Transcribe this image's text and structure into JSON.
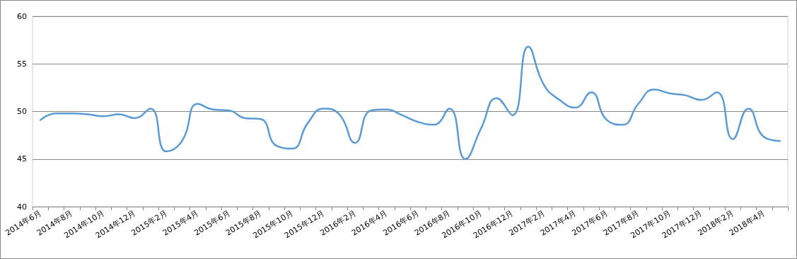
{
  "chart_data": {
    "type": "line",
    "categories": [
      "2014年6月",
      null,
      "2014年8月",
      null,
      "2014年10月",
      null,
      "2014年12月",
      null,
      "2015年2月",
      null,
      "2015年4月",
      null,
      "2015年6月",
      null,
      "2015年8月",
      null,
      "2015年10月",
      null,
      "2015年12月",
      null,
      "2016年2月",
      null,
      "2016年4月",
      null,
      "2016年6月",
      null,
      "2016年8月",
      null,
      "2016年10月",
      null,
      "2016年12月",
      null,
      "2017年2月",
      null,
      "2017年4月",
      null,
      "2017年6月",
      null,
      "2017年8月",
      null,
      "2017年10月",
      null,
      "2017年12月",
      null,
      "2018年2月",
      null,
      "2018年4月",
      null
    ],
    "series": [
      {
        "color": "#5b9bd5",
        "values": [
          49.1,
          49.8,
          49.8,
          49.7,
          49.5,
          49.7,
          49.3,
          50.3,
          45.8,
          46.9,
          50.8,
          50.2,
          50.1,
          49.3,
          49.2,
          46.4,
          46.1,
          48.8,
          50.3,
          49.7,
          46.7,
          50.1,
          50.2,
          49.6,
          48.9,
          48.6,
          50.3,
          45.0,
          48.2,
          51.4,
          49.6,
          56.8,
          52.8,
          51.2,
          50.4,
          52.0,
          49.1,
          48.6,
          50.8,
          52.3,
          51.9,
          51.7,
          51.2,
          52.0,
          47.1,
          50.3,
          47.3,
          46.9
        ]
      }
    ],
    "ylim": [
      40,
      60
    ],
    "yticks": [
      40,
      45,
      50,
      55,
      60
    ],
    "grid": "y",
    "marker": "none",
    "line_style": "solid"
  }
}
